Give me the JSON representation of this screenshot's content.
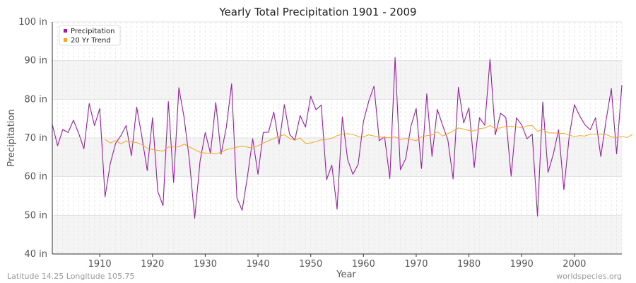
{
  "chart_data": {
    "type": "line",
    "title": "Yearly Total Precipitation 1901 - 2009",
    "xlabel": "Year",
    "ylabel": "Precipitation",
    "xlim": [
      1901,
      2009
    ],
    "ylim": [
      40,
      100
    ],
    "x_ticks": [
      1910,
      1920,
      1930,
      1940,
      1950,
      1960,
      1970,
      1980,
      1990,
      2000
    ],
    "y_ticks": [
      40,
      50,
      60,
      70,
      80,
      90,
      100
    ],
    "y_tick_labels": [
      "40 in",
      "50 in",
      "60 in",
      "70 in",
      "80 in",
      "90 in",
      "100 in"
    ],
    "legend_position": "top-left",
    "colors": {
      "precipitation": "#9b1fa5",
      "trend": "#f5a623",
      "band": "#f4f4f4",
      "grid": "#e2e2e2"
    },
    "series": [
      {
        "name": "Precipitation",
        "x_start": 1901,
        "values": [
          73.5,
          68.0,
          72.2,
          71.4,
          74.6,
          71.2,
          67.2,
          78.9,
          73.2,
          77.6,
          54.8,
          63.4,
          68.6,
          70.6,
          73.2,
          65.4,
          78.0,
          70.2,
          61.6,
          75.2,
          56.2,
          52.5,
          79.4,
          58.5,
          83.0,
          75.2,
          64.2,
          49.2,
          63.8,
          71.4,
          66.0,
          79.2,
          65.8,
          72.8,
          84.0,
          54.5,
          51.3,
          60.0,
          69.8,
          60.6,
          71.4,
          71.5,
          76.7,
          68.4,
          78.6,
          70.9,
          69.5,
          75.8,
          72.8,
          80.8,
          77.3,
          78.5,
          59.2,
          63.0,
          51.6,
          75.4,
          64.4,
          60.6,
          63.2,
          74.3,
          79.5,
          83.4,
          69.3,
          70.3,
          59.5,
          90.8,
          61.8,
          64.6,
          73.0,
          77.6,
          62.1,
          81.4,
          65.2,
          77.4,
          73.3,
          69.5,
          59.4,
          83.1,
          73.9,
          77.8,
          62.4,
          75.2,
          73.3,
          90.4,
          70.8,
          76.4,
          75.3,
          60.1,
          75.2,
          73.4,
          69.8,
          71.0,
          49.8,
          79.3,
          61.1,
          65.8,
          72.1,
          56.6,
          70.2,
          78.6,
          75.7,
          73.4,
          72.1,
          75.2,
          65.2,
          74.5,
          82.8,
          65.9,
          83.7
        ]
      },
      {
        "name": "20 Yr Trend",
        "x_start": 1911,
        "values": [
          69.6,
          68.7,
          69.3,
          68.5,
          69.2,
          69.0,
          68.8,
          68.3,
          67.3,
          67.0,
          66.8,
          66.6,
          67.6,
          67.7,
          67.7,
          68.4,
          67.7,
          67.0,
          66.3,
          66.1,
          66.1,
          65.9,
          66.3,
          67.0,
          67.3,
          67.6,
          67.9,
          67.6,
          67.4,
          68.0,
          68.7,
          69.3,
          69.8,
          70.5,
          70.8,
          69.9,
          69.4,
          70.0,
          68.6,
          68.7,
          69.1,
          69.5,
          69.6,
          69.9,
          70.6,
          71.0,
          71.1,
          70.9,
          70.4,
          70.3,
          70.8,
          70.5,
          70.3,
          70.1,
          70.1,
          70.3,
          69.6,
          69.9,
          69.6,
          69.3,
          70.3,
          70.6,
          70.8,
          71.6,
          70.5,
          71.1,
          71.8,
          72.6,
          72.3,
          71.9,
          71.8,
          72.4,
          72.6,
          73.2,
          72.4,
          72.6,
          73.0,
          73.0,
          72.9,
          72.6,
          73.1,
          73.2,
          71.7,
          72.3,
          71.3,
          71.3,
          71.2,
          71.2,
          70.7,
          70.4,
          70.6,
          70.5,
          71.0,
          70.9,
          71.0,
          70.9,
          70.3,
          70.1,
          70.4,
          70.1,
          70.9
        ]
      }
    ],
    "footer_left": "Latitude 14.25 Longitude 105.75",
    "footer_right": "worldspecies.org"
  }
}
